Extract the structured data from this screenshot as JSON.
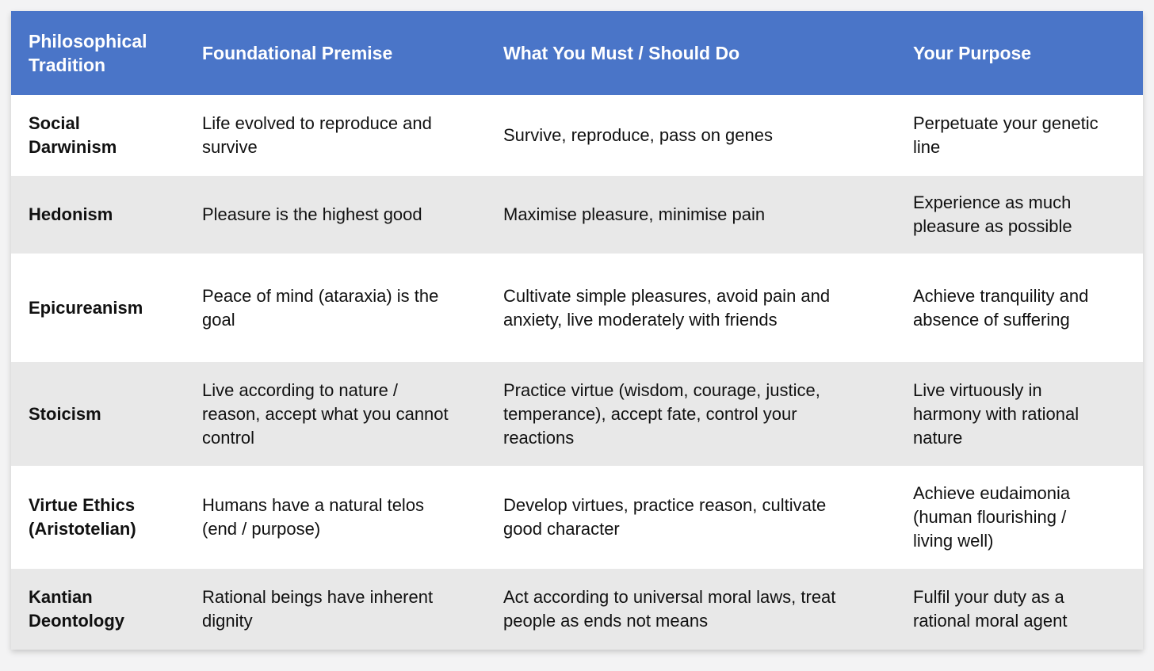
{
  "table": {
    "columns": [
      {
        "label": "Philosophical Tradition"
      },
      {
        "label": "Foundational Premise"
      },
      {
        "label": "What You Must / Should Do"
      },
      {
        "label": "Your Purpose"
      }
    ],
    "rows": [
      {
        "tradition": "Social Darwinism",
        "premise": "Life evolved to reproduce and survive",
        "action": "Survive, reproduce, pass on genes",
        "purpose": "Perpetuate your genetic line"
      },
      {
        "tradition": "Hedonism",
        "premise": "Pleasure is the highest good",
        "action": "Maximise pleasure, minimise pain",
        "purpose": "Experience as much pleasure as possible"
      },
      {
        "tradition": "Epicureanism",
        "premise": "Peace of mind (ataraxia) is the goal",
        "action": "Cultivate simple pleasures, avoid pain and anxiety, live moderately with friends",
        "purpose": "Achieve tranquility and absence of suffering"
      },
      {
        "tradition": "Stoicism",
        "premise": "Live according to nature / reason, accept what you cannot control",
        "action": "Practice virtue (wisdom, courage, justice, temperance), accept fate, control your reactions",
        "purpose": "Live virtuously in harmony with rational nature"
      },
      {
        "tradition": "Virtue Ethics (Aristotelian)",
        "premise": "Humans have a natural telos (end / purpose)",
        "action": "Develop virtues, practice reason, cultivate good character",
        "purpose": "Achieve eudaimonia (human flourishing / living well)"
      },
      {
        "tradition": "Kantian Deontology",
        "premise": "Rational beings have inherent dignity",
        "action": "Act according to universal moral laws, treat people as ends not means",
        "purpose": "Fulfil your duty as a rational moral agent"
      }
    ]
  },
  "colors": {
    "header_bg": "#4a75c8",
    "header_text": "#ffffff",
    "row_bg": "#ffffff",
    "row_alt_bg": "#e8e8e8",
    "page_bg": "#f3f3f4",
    "body_text": "#111111"
  }
}
